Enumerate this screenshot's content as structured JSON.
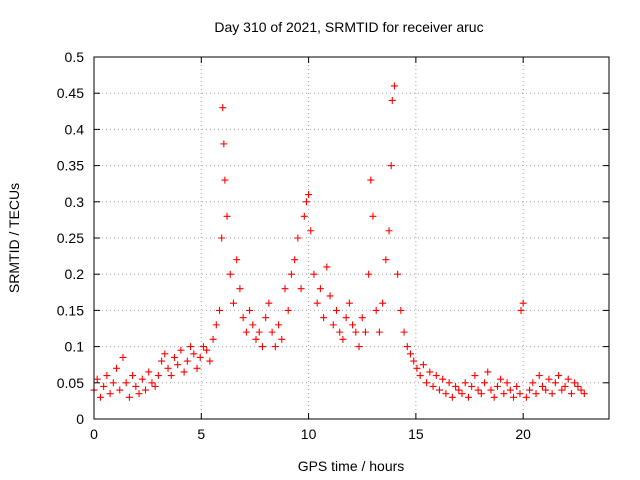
{
  "chart_data": {
    "type": "scatter",
    "title": "Day 310 of 2021, SRMTID for receiver aruc",
    "xlabel": "GPS time / hours",
    "ylabel": "SRMTID / TECUs",
    "xlim": [
      0,
      24
    ],
    "ylim": [
      0,
      0.5
    ],
    "xticks": [
      0,
      5,
      10,
      15,
      20
    ],
    "yticks": [
      0,
      0.05,
      0.1,
      0.15,
      0.2,
      0.25,
      0.3,
      0.35,
      0.4,
      0.45,
      0.5
    ],
    "grid": true,
    "marker": "+",
    "color": "#ff0000",
    "series": [
      {
        "name": "SRMTID",
        "x": [
          0.0,
          0.15,
          0.3,
          0.45,
          0.6,
          0.75,
          0.9,
          1.05,
          1.2,
          1.35,
          1.5,
          1.65,
          1.8,
          1.95,
          2.1,
          2.25,
          2.4,
          2.55,
          2.7,
          2.85,
          3.0,
          3.15,
          3.3,
          3.45,
          3.6,
          3.75,
          3.9,
          4.05,
          4.2,
          4.35,
          4.5,
          4.65,
          4.8,
          4.95,
          5.1,
          5.25,
          5.4,
          5.55,
          5.7,
          5.85,
          5.95,
          6.0,
          6.05,
          6.1,
          6.2,
          6.35,
          6.5,
          6.65,
          6.8,
          6.95,
          7.1,
          7.25,
          7.4,
          7.55,
          7.7,
          7.85,
          8.0,
          8.15,
          8.3,
          8.45,
          8.6,
          8.75,
          8.9,
          9.05,
          9.2,
          9.35,
          9.5,
          9.65,
          9.8,
          9.9,
          10.0,
          10.1,
          10.25,
          10.4,
          10.55,
          10.7,
          10.85,
          11.0,
          11.15,
          11.3,
          11.45,
          11.6,
          11.75,
          11.9,
          12.05,
          12.2,
          12.35,
          12.5,
          12.65,
          12.8,
          12.9,
          13.0,
          13.15,
          13.3,
          13.45,
          13.6,
          13.75,
          13.85,
          13.9,
          14.0,
          14.15,
          14.3,
          14.45,
          14.6,
          14.75,
          14.9,
          15.05,
          15.2,
          15.35,
          15.5,
          15.65,
          15.8,
          15.95,
          16.1,
          16.25,
          16.4,
          16.55,
          16.7,
          16.85,
          17.0,
          17.15,
          17.3,
          17.45,
          17.6,
          17.75,
          17.9,
          18.05,
          18.2,
          18.35,
          18.5,
          18.65,
          18.8,
          18.95,
          19.1,
          19.25,
          19.4,
          19.55,
          19.7,
          19.85,
          19.9,
          20.0,
          20.15,
          20.3,
          20.45,
          20.6,
          20.75,
          20.9,
          21.05,
          21.2,
          21.35,
          21.5,
          21.65,
          21.8,
          21.95,
          22.1,
          22.25,
          22.4,
          22.55,
          22.7,
          22.85
        ],
        "y": [
          0.04,
          0.055,
          0.03,
          0.045,
          0.06,
          0.035,
          0.05,
          0.07,
          0.04,
          0.085,
          0.05,
          0.03,
          0.06,
          0.045,
          0.035,
          0.055,
          0.04,
          0.065,
          0.05,
          0.045,
          0.06,
          0.08,
          0.09,
          0.07,
          0.06,
          0.085,
          0.075,
          0.095,
          0.065,
          0.08,
          0.1,
          0.09,
          0.07,
          0.085,
          0.1,
          0.095,
          0.08,
          0.11,
          0.13,
          0.15,
          0.25,
          0.43,
          0.38,
          0.33,
          0.28,
          0.2,
          0.16,
          0.22,
          0.18,
          0.14,
          0.12,
          0.15,
          0.13,
          0.11,
          0.12,
          0.1,
          0.14,
          0.16,
          0.12,
          0.1,
          0.13,
          0.11,
          0.18,
          0.15,
          0.2,
          0.22,
          0.25,
          0.18,
          0.28,
          0.3,
          0.31,
          0.26,
          0.2,
          0.16,
          0.18,
          0.14,
          0.21,
          0.17,
          0.13,
          0.15,
          0.12,
          0.11,
          0.14,
          0.16,
          0.13,
          0.12,
          0.1,
          0.14,
          0.12,
          0.2,
          0.33,
          0.28,
          0.15,
          0.12,
          0.16,
          0.22,
          0.26,
          0.35,
          0.44,
          0.46,
          0.2,
          0.15,
          0.12,
          0.1,
          0.09,
          0.08,
          0.07,
          0.06,
          0.075,
          0.05,
          0.065,
          0.045,
          0.06,
          0.04,
          0.055,
          0.035,
          0.05,
          0.03,
          0.045,
          0.04,
          0.035,
          0.05,
          0.03,
          0.045,
          0.06,
          0.04,
          0.035,
          0.05,
          0.065,
          0.04,
          0.03,
          0.045,
          0.055,
          0.035,
          0.05,
          0.04,
          0.03,
          0.045,
          0.035,
          0.15,
          0.16,
          0.03,
          0.04,
          0.05,
          0.035,
          0.06,
          0.045,
          0.04,
          0.055,
          0.035,
          0.05,
          0.06,
          0.04,
          0.045,
          0.055,
          0.035,
          0.05,
          0.045,
          0.04,
          0.035
        ]
      }
    ]
  }
}
